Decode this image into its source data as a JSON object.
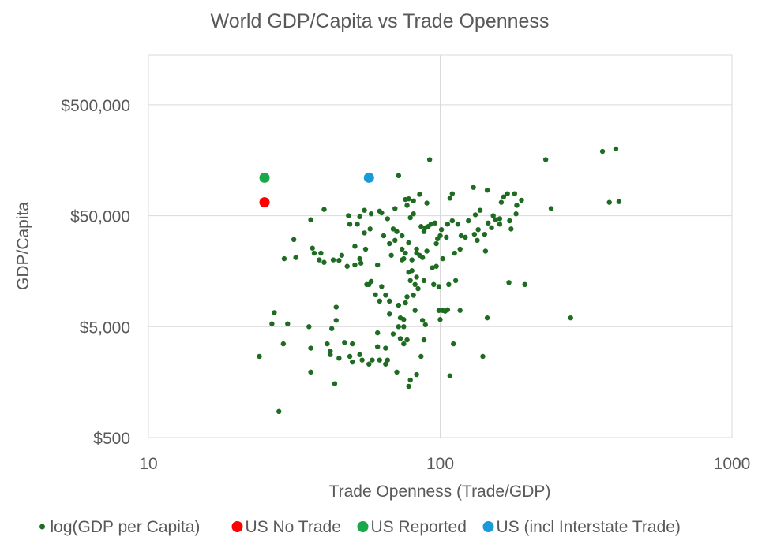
{
  "chart_data": {
    "type": "scatter",
    "title": "World GDP/Capita vs Trade Openness",
    "xlabel": "Trade Openness (Trade/GDP)",
    "ylabel": "GDP/Capita",
    "x_scale": "log",
    "y_scale": "log",
    "xlim": [
      10,
      1000
    ],
    "ylim": [
      500,
      1400000
    ],
    "x_ticks": [
      10,
      100,
      1000
    ],
    "x_tick_labels": [
      "10",
      "100",
      "1000"
    ],
    "y_ticks": [
      500,
      5000,
      50000,
      500000
    ],
    "y_tick_labels": [
      "$500",
      "$5,000",
      "$50,000",
      "$500,000"
    ],
    "grid": true,
    "legend_position": "bottom",
    "series": [
      {
        "name": "log(GDP per Capita)",
        "color": "#1e6b22",
        "marker_size": "small",
        "points": [
          [
            24,
            2700
          ],
          [
            26.5,
            5300
          ],
          [
            27,
            6700
          ],
          [
            28,
            860
          ],
          [
            29,
            3500
          ],
          [
            29.2,
            20500
          ],
          [
            30,
            5300
          ],
          [
            31.5,
            30500
          ],
          [
            32,
            21000
          ],
          [
            35.5,
            5000
          ],
          [
            36,
            46000
          ],
          [
            36,
            3200
          ],
          [
            36,
            1950
          ],
          [
            36.5,
            25500
          ],
          [
            37,
            23000
          ],
          [
            38.5,
            20000
          ],
          [
            39,
            23000
          ],
          [
            40,
            57000
          ],
          [
            40,
            19000
          ],
          [
            41,
            3500
          ],
          [
            42,
            3000
          ],
          [
            42,
            2800
          ],
          [
            42.5,
            4800
          ],
          [
            43.5,
            1530
          ],
          [
            43,
            20000
          ],
          [
            44,
            7500
          ],
          [
            44,
            5700
          ],
          [
            45,
            2600
          ],
          [
            45,
            19800
          ],
          [
            46,
            22000
          ],
          [
            47,
            3600
          ],
          [
            48,
            17500
          ],
          [
            48.5,
            50000
          ],
          [
            49,
            42000
          ],
          [
            49,
            2700
          ],
          [
            50,
            3500
          ],
          [
            50,
            2400
          ],
          [
            51,
            26500
          ],
          [
            51,
            18000
          ],
          [
            52,
            42000
          ],
          [
            53,
            49000
          ],
          [
            53,
            20500
          ],
          [
            53,
            2800
          ],
          [
            53.5,
            18700
          ],
          [
            54,
            2500
          ],
          [
            55,
            35000
          ],
          [
            55,
            56000
          ],
          [
            55.5,
            25000
          ],
          [
            56,
            12000
          ],
          [
            57,
            12000
          ],
          [
            57,
            2300
          ],
          [
            57.5,
            38000
          ],
          [
            58,
            52000
          ],
          [
            58,
            12800
          ],
          [
            58.5,
            2500
          ],
          [
            60,
            9700
          ],
          [
            61,
            18000
          ],
          [
            61,
            4400
          ],
          [
            61,
            3300
          ],
          [
            62,
            55000
          ],
          [
            62,
            8500
          ],
          [
            62,
            2500
          ],
          [
            63,
            53000
          ],
          [
            63,
            11500
          ],
          [
            64,
            33000
          ],
          [
            65,
            3200
          ],
          [
            65,
            9600
          ],
          [
            65,
            2300
          ],
          [
            66,
            47000
          ],
          [
            66,
            2500
          ],
          [
            67,
            28000
          ],
          [
            67,
            6500
          ],
          [
            67,
            8500
          ],
          [
            68,
            22000
          ],
          [
            69,
            38000
          ],
          [
            69,
            4300
          ],
          [
            70,
            30000
          ],
          [
            70,
            58000
          ],
          [
            71,
            36000
          ],
          [
            71,
            1950
          ],
          [
            72,
            115000
          ],
          [
            72,
            115000
          ],
          [
            72,
            7800
          ],
          [
            72,
            5000
          ],
          [
            73,
            6000
          ],
          [
            73,
            3900
          ],
          [
            74,
            33000
          ],
          [
            74,
            25000
          ],
          [
            74,
            20000
          ],
          [
            75,
            5800
          ],
          [
            75,
            5000
          ],
          [
            75,
            3500
          ],
          [
            75,
            20500
          ],
          [
            76,
            70000
          ],
          [
            76,
            23000
          ],
          [
            76,
            8200
          ],
          [
            77,
            62000
          ],
          [
            77,
            9300
          ],
          [
            77,
            3800
          ],
          [
            78,
            28500
          ],
          [
            78,
            71000
          ],
          [
            78,
            15500
          ],
          [
            78,
            1450
          ],
          [
            79,
            48000
          ],
          [
            79,
            13000
          ],
          [
            79,
            1650
          ],
          [
            80,
            20000
          ],
          [
            80,
            16000
          ],
          [
            81,
            52000
          ],
          [
            81,
            68000
          ],
          [
            81,
            9600
          ],
          [
            82,
            12000
          ],
          [
            82,
            7000
          ],
          [
            83,
            25000
          ],
          [
            83,
            23000
          ],
          [
            83,
            14000
          ],
          [
            83,
            1850
          ],
          [
            84,
            11000
          ],
          [
            85,
            22000
          ],
          [
            85,
            78000
          ],
          [
            86,
            40000
          ],
          [
            86,
            2700
          ],
          [
            87,
            21000
          ],
          [
            87,
            5700
          ],
          [
            88,
            36000
          ],
          [
            88,
            13000
          ],
          [
            88,
            3800
          ],
          [
            89,
            5200
          ],
          [
            89,
            39000
          ],
          [
            90,
            65000
          ],
          [
            90,
            24000
          ],
          [
            91,
            40000
          ],
          [
            92,
            160000
          ],
          [
            93,
            42000
          ],
          [
            94,
            17000
          ],
          [
            95,
            12000
          ],
          [
            96,
            43000
          ],
          [
            97,
            28000
          ],
          [
            97,
            17500
          ],
          [
            98,
            31000
          ],
          [
            99,
            7000
          ],
          [
            99,
            11500
          ],
          [
            100,
            5800
          ],
          [
            100,
            33000
          ],
          [
            101,
            37500
          ],
          [
            102,
            20500
          ],
          [
            102,
            7000
          ],
          [
            104,
            6900
          ],
          [
            105,
            32000
          ],
          [
            106,
            42000
          ],
          [
            106,
            7100
          ],
          [
            107,
            12000
          ],
          [
            108,
            72000
          ],
          [
            108,
            1800
          ],
          [
            110,
            45000
          ],
          [
            110,
            79000
          ],
          [
            111,
            3500
          ],
          [
            112,
            23000
          ],
          [
            113,
            13000
          ],
          [
            115,
            42000
          ],
          [
            117,
            25000
          ],
          [
            117,
            7000
          ],
          [
            118,
            33000
          ],
          [
            122,
            32000
          ],
          [
            125,
            45000
          ],
          [
            130,
            90000
          ],
          [
            131,
            34000
          ],
          [
            132,
            51000
          ],
          [
            134,
            30000
          ],
          [
            135,
            37500
          ],
          [
            137,
            56000
          ],
          [
            140,
            2700
          ],
          [
            142,
            34000
          ],
          [
            143,
            24000
          ],
          [
            145,
            85000
          ],
          [
            145,
            6000
          ],
          [
            146,
            43000
          ],
          [
            150,
            39000
          ],
          [
            152,
            50000
          ],
          [
            155,
            46000
          ],
          [
            160,
            47000
          ],
          [
            160,
            42000
          ],
          [
            162,
            66000
          ],
          [
            165,
            74000
          ],
          [
            170,
            79000
          ],
          [
            172,
            12500
          ],
          [
            173,
            45000
          ],
          [
            175,
            38000
          ],
          [
            180,
            79000
          ],
          [
            182,
            52000
          ],
          [
            183,
            62000
          ],
          [
            190,
            69000
          ],
          [
            195,
            12000
          ],
          [
            230,
            160000
          ],
          [
            240,
            58000
          ],
          [
            280,
            6000
          ],
          [
            360,
            190000
          ],
          [
            380,
            66000
          ],
          [
            400,
            200000
          ],
          [
            410,
            67000
          ]
        ]
      },
      {
        "name": "US No Trade",
        "color": "#ff0000",
        "marker_size": "large",
        "points": [
          [
            25,
            66000
          ]
        ]
      },
      {
        "name": "US Reported",
        "color": "#1aa84b",
        "marker_size": "large",
        "points": [
          [
            25,
            110000
          ]
        ]
      },
      {
        "name": "US (incl Interstate Trade)",
        "color": "#1a9bd7",
        "marker_size": "large",
        "points": [
          [
            57,
            110000
          ]
        ]
      }
    ]
  }
}
